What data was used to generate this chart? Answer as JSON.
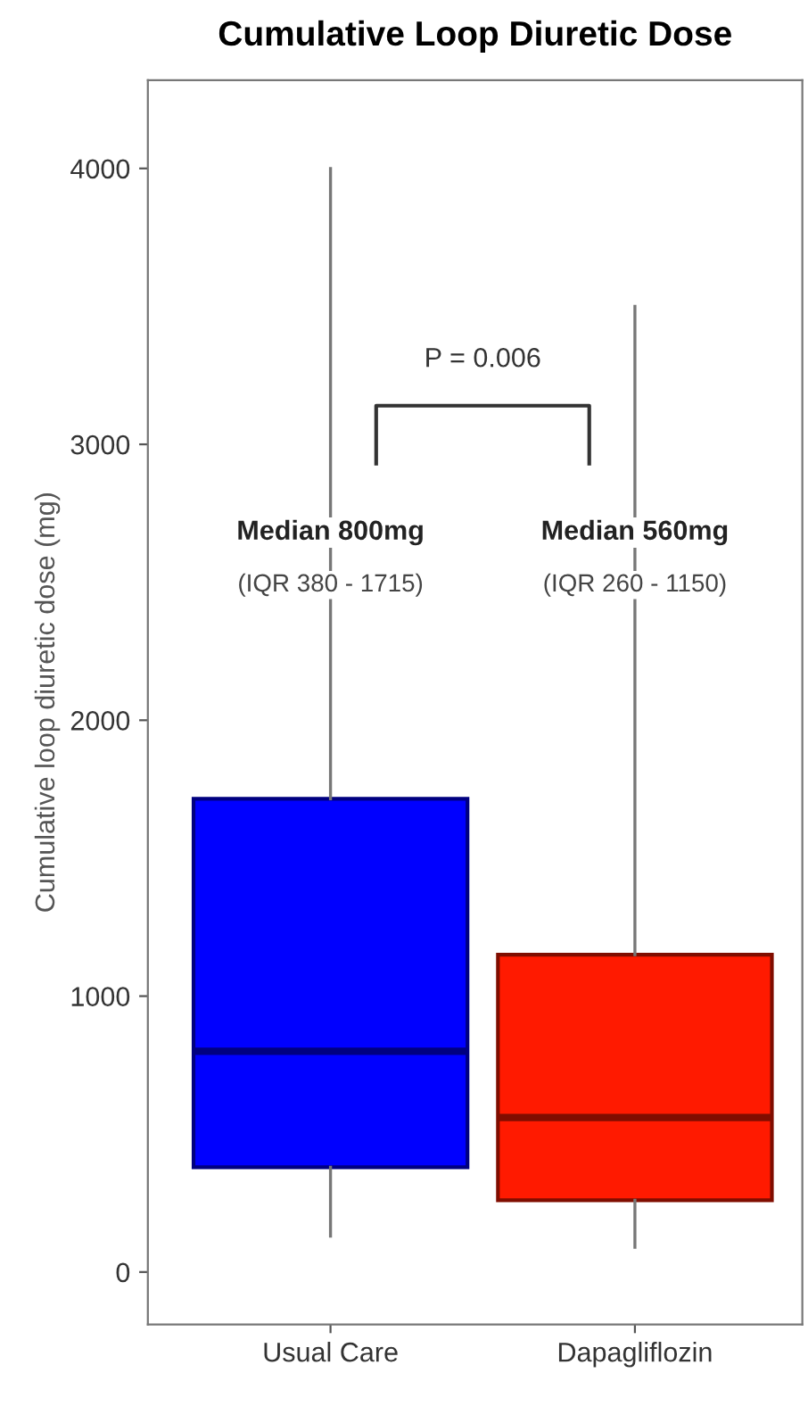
{
  "chart_data": {
    "type": "box",
    "title": "Cumulative Loop Diuretic Dose",
    "ylabel": "Cumulative loop diuretic dose (mg)",
    "categories": [
      "Usual Care",
      "Dapagliflozin"
    ],
    "colors": [
      "#0000ff",
      "#ff1a00"
    ],
    "boxes": [
      {
        "low": 130,
        "q1": 380,
        "median": 800,
        "q3": 1715,
        "high": 4000
      },
      {
        "low": 90,
        "q1": 260,
        "median": 560,
        "q3": 1150,
        "high": 3500
      }
    ],
    "ylim": [
      -190,
      4320
    ],
    "yticks": [
      0,
      1000,
      2000,
      3000,
      4000
    ],
    "grid": false,
    "annotations": [
      {
        "text": "Median 800mg",
        "x": "Usual Care",
        "y": 2680
      },
      {
        "text": "(IQR 380 - 1715)",
        "x": "Usual Care",
        "y": 2490
      },
      {
        "text": "Median 560mg",
        "x": "Dapagliflozin",
        "y": 2680
      },
      {
        "text": "(IQR 260 - 1150)",
        "x": "Dapagliflozin",
        "y": 2490
      },
      "P = 0.006"
    ]
  }
}
